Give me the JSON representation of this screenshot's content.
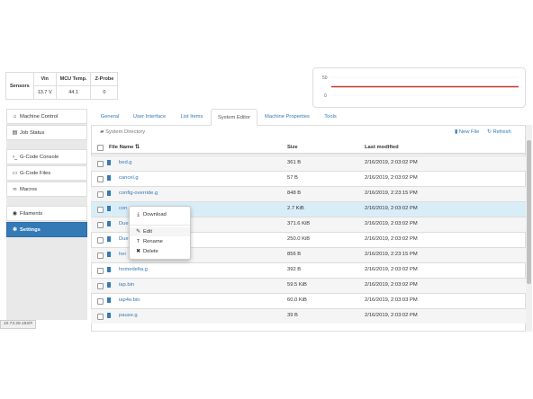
{
  "sensors": {
    "header": "Sensors",
    "columns": [
      "Vin",
      "MCU Temp.",
      "Z-Probe"
    ],
    "values": [
      "13.7 V",
      "44.1",
      "0"
    ]
  },
  "chart": {
    "y_ticks": [
      "50",
      "0"
    ],
    "line_color": "#c0392b"
  },
  "nav": {
    "items": [
      {
        "label": "Machine Control",
        "icon": "home-icon",
        "glyph": "⌂"
      },
      {
        "label": "Job Status",
        "icon": "print-icon",
        "glyph": "▤"
      },
      {
        "label": "G-Code Console",
        "icon": "terminal-icon",
        "glyph": "›_"
      },
      {
        "label": "G-Code Files",
        "icon": "hdd-icon",
        "glyph": "▭"
      },
      {
        "label": "Macros",
        "icon": "link-icon",
        "glyph": "∞"
      },
      {
        "label": "Filaments",
        "icon": "disc-icon",
        "glyph": "◉"
      },
      {
        "label": "Settings",
        "icon": "cog-icon",
        "glyph": "✻"
      }
    ],
    "active": "Settings"
  },
  "tabs": [
    "General",
    "User Interface",
    "List Items",
    "System Editor",
    "Machine Properties",
    "Tools"
  ],
  "active_tab": "System Editor",
  "directory": {
    "label": "System Directory",
    "new_file": "New File",
    "refresh": "Refresh"
  },
  "table": {
    "columns": [
      "File Name",
      "Size",
      "Last modified"
    ],
    "rows": [
      {
        "name": "bed.g",
        "size": "361 B",
        "date": "2/16/2019, 2:03:02 PM"
      },
      {
        "name": "cancel.g",
        "size": "57 B",
        "date": "2/16/2019, 2:03:02 PM"
      },
      {
        "name": "config-override.g",
        "size": "848 B",
        "date": "2/16/2019, 2:23:15 PM"
      },
      {
        "name": "con",
        "size": "2.7 KiB",
        "date": "2/16/2019, 2:03:02 PM"
      },
      {
        "name": "Due",
        "size": "371.6 KiB",
        "date": "2/16/2019, 2:03:02 PM"
      },
      {
        "name": "Due",
        "size": "250.0 KiB",
        "date": "2/16/2019, 2:03:02 PM"
      },
      {
        "name": "hei",
        "size": "856 B",
        "date": "2/16/2019, 2:23:15 PM"
      },
      {
        "name": "homedelta.g",
        "size": "392 B",
        "date": "2/16/2019, 2:03:02 PM"
      },
      {
        "name": "iap.bin",
        "size": "59.5 KiB",
        "date": "2/16/2019, 2:03:02 PM"
      },
      {
        "name": "iap4e.bin",
        "size": "60.0 KiB",
        "date": "2/16/2019, 2:03:03 PM"
      },
      {
        "name": "pause.g",
        "size": "39 B",
        "date": "2/16/2019, 2:03:02 PM"
      }
    ]
  },
  "context_menu": {
    "items": [
      {
        "label": "Download",
        "icon": "download-icon",
        "glyph": "⤓"
      },
      {
        "label": "Edit",
        "icon": "pencil-icon",
        "glyph": "✎"
      },
      {
        "label": "Rename",
        "icon": "text-icon",
        "glyph": "T"
      },
      {
        "label": "Delete",
        "icon": "remove-icon",
        "glyph": "✖"
      }
    ]
  },
  "status_url": "10.73.29.192/#"
}
